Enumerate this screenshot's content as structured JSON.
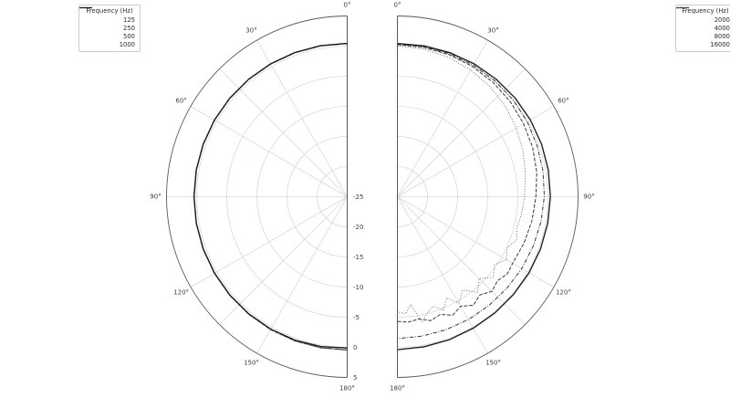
{
  "figure": {
    "background": "#ffffff"
  },
  "style": {
    "grid_color": "#d9d9d9",
    "axis_color": "#595959",
    "tick_label_color": "#3d3d3d",
    "line_styles": {
      "solid": {
        "color": "#1a1a1a",
        "width": 1.35,
        "dash": ""
      },
      "dashdot": {
        "color": "#3a3a3a",
        "width": 1.0,
        "dash": "4.5,1.6,1,1.6"
      },
      "dashed": {
        "color": "#3a3a3a",
        "width": 1.0,
        "dash": "4,1.7"
      },
      "dotted": {
        "color": "#6e6e6e",
        "width": 1.0,
        "dash": "1,1.8"
      }
    }
  },
  "legends": {
    "left": {
      "title": "Frequency (Hz)",
      "items": [
        {
          "label": "125",
          "style": "dotted"
        },
        {
          "label": "250",
          "style": "dashdot"
        },
        {
          "label": "500",
          "style": "dashed"
        },
        {
          "label": "1000",
          "style": "solid"
        }
      ]
    },
    "right": {
      "title": "Frequency (Hz)",
      "items": [
        {
          "label": "2000",
          "style": "solid"
        },
        {
          "label": "4000",
          "style": "dashdot"
        },
        {
          "label": "8000",
          "style": "dashed"
        },
        {
          "label": "16000",
          "style": "dotted"
        }
      ]
    }
  },
  "chart_data": [
    {
      "type": "line",
      "subtype": "half-polar",
      "side": "left",
      "title": "",
      "legend_title": "Frequency (Hz)",
      "rlim": [
        -25,
        5
      ],
      "r_ticks": [
        -25,
        -20,
        -15,
        -10,
        -5,
        0,
        5
      ],
      "r_tick_labels": [
        "-25",
        "-20",
        "-15",
        "-10",
        "-5",
        "0",
        "5"
      ],
      "show_r_labels": true,
      "r_grid": [
        -20,
        -15,
        -10,
        -5,
        0
      ],
      "theta_ticks_deg": [
        0,
        30,
        60,
        90,
        120,
        150,
        180
      ],
      "theta_labels": [
        "0°",
        "30°",
        "60°",
        "90°",
        "120°",
        "150°",
        "180°"
      ],
      "grid_angles_deg": [
        30,
        45,
        60,
        90,
        120,
        135,
        150
      ],
      "series": [
        {
          "name": "125",
          "linestyle": "dotted",
          "angles_deg": [
            0,
            10,
            20,
            30,
            40,
            50,
            60,
            70,
            80,
            90,
            100,
            110,
            120,
            130,
            140,
            150,
            160,
            170,
            180
          ],
          "values_db": [
            0.5,
            0.5,
            0.5,
            0.5,
            0.5,
            0.5,
            0.5,
            0.5,
            0.5,
            0.5,
            0.5,
            0.5,
            0.5,
            0.5,
            0.5,
            0.5,
            0.5,
            0.5,
            0.5
          ]
        },
        {
          "name": "250",
          "linestyle": "dashdot",
          "angles_deg": [
            0,
            10,
            20,
            30,
            40,
            50,
            60,
            70,
            80,
            90,
            100,
            110,
            120,
            130,
            140,
            150,
            160,
            170,
            180
          ],
          "values_db": [
            0.42,
            0.42,
            0.42,
            0.42,
            0.42,
            0.42,
            0.42,
            0.42,
            0.42,
            0.42,
            0.42,
            0.42,
            0.42,
            0.42,
            0.42,
            0.42,
            0.42,
            0.42,
            0.42
          ]
        },
        {
          "name": "500",
          "linestyle": "dashed",
          "angles_deg": [
            0,
            10,
            20,
            30,
            40,
            50,
            60,
            70,
            80,
            90,
            100,
            110,
            120,
            130,
            140,
            150,
            160,
            170,
            180
          ],
          "values_db": [
            0.46,
            0.46,
            0.46,
            0.46,
            0.46,
            0.46,
            0.46,
            0.46,
            0.46,
            0.46,
            0.46,
            0.46,
            0.46,
            0.46,
            0.46,
            0.46,
            0.46,
            0.46,
            0.46
          ]
        },
        {
          "name": "1000",
          "linestyle": "solid",
          "angles_deg": [
            0,
            10,
            20,
            30,
            40,
            50,
            60,
            70,
            80,
            90,
            100,
            110,
            120,
            130,
            140,
            150,
            160,
            170,
            180
          ],
          "values_db": [
            0.45,
            0.45,
            0.46,
            0.46,
            0.45,
            0.45,
            0.46,
            0.45,
            0.45,
            0.44,
            0.44,
            0.43,
            0.42,
            0.42,
            0.4,
            0.38,
            0.33,
            0.25,
            0.1
          ]
        }
      ]
    },
    {
      "type": "line",
      "subtype": "half-polar",
      "side": "right",
      "title": "",
      "legend_title": "Frequency (Hz)",
      "rlim": [
        -25,
        5
      ],
      "r_ticks": [
        -25,
        -20,
        -15,
        -10,
        -5,
        0,
        5
      ],
      "r_tick_labels": [
        "-25",
        "-20",
        "-15",
        "-10",
        "-5",
        "0",
        "5"
      ],
      "show_r_labels": false,
      "r_grid": [
        -20,
        -15,
        -10,
        -5,
        0
      ],
      "theta_ticks_deg": [
        0,
        30,
        60,
        90,
        120,
        150,
        180
      ],
      "theta_labels": [
        "0°",
        "30°",
        "60°",
        "90°",
        "120°",
        "150°",
        "180°"
      ],
      "grid_angles_deg": [
        30,
        45,
        60,
        90,
        120,
        135,
        150
      ],
      "series": [
        {
          "name": "2000",
          "linestyle": "solid",
          "angles_deg": [
            0,
            10,
            20,
            30,
            40,
            50,
            60,
            70,
            80,
            90,
            100,
            110,
            120,
            130,
            140,
            150,
            160,
            170,
            180
          ],
          "values_db": [
            0.42,
            0.43,
            0.45,
            0.47,
            0.49,
            0.5,
            0.5,
            0.48,
            0.45,
            0.4,
            0.35,
            0.3,
            0.25,
            0.2,
            0.18,
            0.2,
            0.25,
            0.3,
            0.4
          ]
        },
        {
          "name": "4000",
          "linestyle": "dashdot",
          "angles_deg": [
            0,
            10,
            20,
            30,
            40,
            50,
            60,
            70,
            80,
            90,
            100,
            110,
            120,
            130,
            140,
            150,
            160,
            170,
            180
          ],
          "values_db": [
            0.3,
            0.3,
            0.28,
            0.22,
            0.15,
            0.05,
            -0.1,
            -0.3,
            -0.45,
            -0.6,
            -0.8,
            -1.0,
            -1.15,
            -1.3,
            -1.4,
            -1.45,
            -1.5,
            -1.5,
            -1.45
          ]
        },
        {
          "name": "8000",
          "linestyle": "dashed",
          "angles_deg": [
            0,
            10,
            20,
            30,
            40,
            50,
            60,
            70,
            80,
            90,
            100,
            110,
            120,
            125,
            130,
            135,
            140,
            145,
            150,
            155,
            160,
            165,
            170,
            175,
            180
          ],
          "values_db": [
            0.25,
            0.2,
            0.1,
            -0.05,
            -0.25,
            -0.5,
            -0.8,
            -1.1,
            -1.5,
            -2.0,
            -2.3,
            -2.6,
            -2.9,
            -2.7,
            -3.3,
            -2.8,
            -3.7,
            -3.0,
            -4.0,
            -3.3,
            -4.2,
            -3.7,
            -4.4,
            -4.1,
            -4.3
          ]
        },
        {
          "name": "16000",
          "linestyle": "dotted",
          "angles_deg": [
            0,
            10,
            20,
            30,
            40,
            50,
            60,
            70,
            80,
            90,
            95,
            100,
            105,
            110,
            115,
            120,
            125,
            130,
            135,
            140,
            145,
            150,
            154,
            158,
            162,
            166,
            169,
            173,
            176,
            180
          ],
          "values_db": [
            0.05,
            -0.1,
            -0.35,
            -0.7,
            -1.1,
            -1.6,
            -2.2,
            -2.8,
            -3.4,
            -3.9,
            -4.1,
            -4.3,
            -4.5,
            -3.9,
            -4.9,
            -4.1,
            -5.3,
            -4.2,
            -5.8,
            -4.3,
            -6.1,
            -4.6,
            -6.3,
            -4.7,
            -5.9,
            -4.9,
            -3.8,
            -7.0,
            -5.5,
            -5.9
          ]
        }
      ]
    }
  ]
}
